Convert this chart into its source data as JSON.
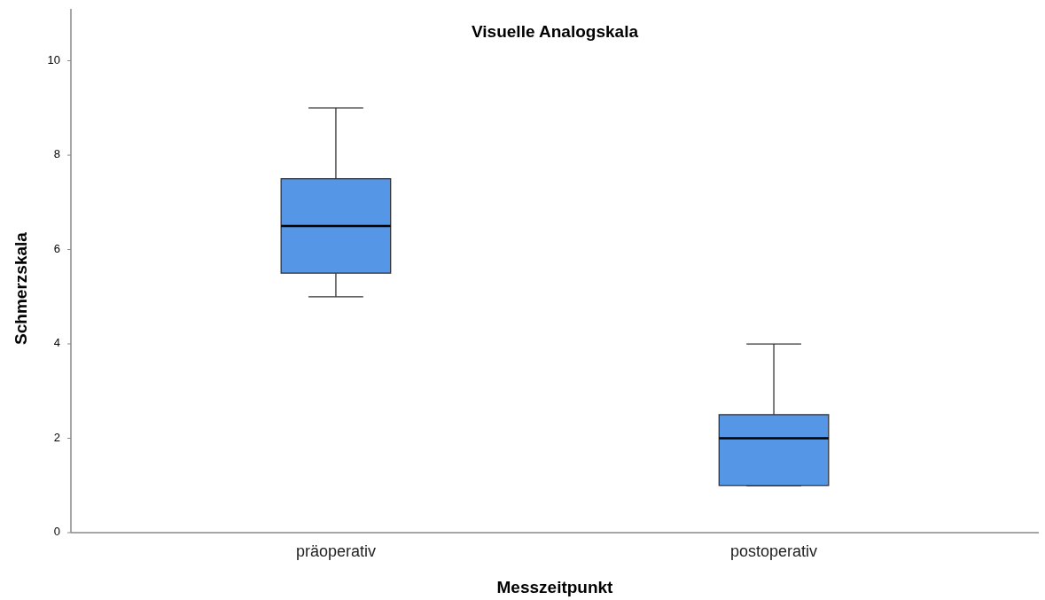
{
  "chart_data": {
    "type": "box",
    "title": "Visuelle Analogskala",
    "xlabel": "Messzeitpunkt",
    "ylabel": "Schmerzskala",
    "categories": [
      "präoperativ",
      "postoperativ"
    ],
    "boxes": [
      {
        "low": 5,
        "q1": 5.5,
        "median": 6.5,
        "q3": 7.5,
        "high": 9
      },
      {
        "low": 1,
        "q1": 1,
        "median": 2,
        "q3": 2.5,
        "high": 4
      }
    ],
    "color": "#5596e6",
    "ylim": [
      0,
      11.1
    ],
    "yticks": [
      0,
      2,
      4,
      6,
      8,
      10
    ],
    "grid": false
  }
}
